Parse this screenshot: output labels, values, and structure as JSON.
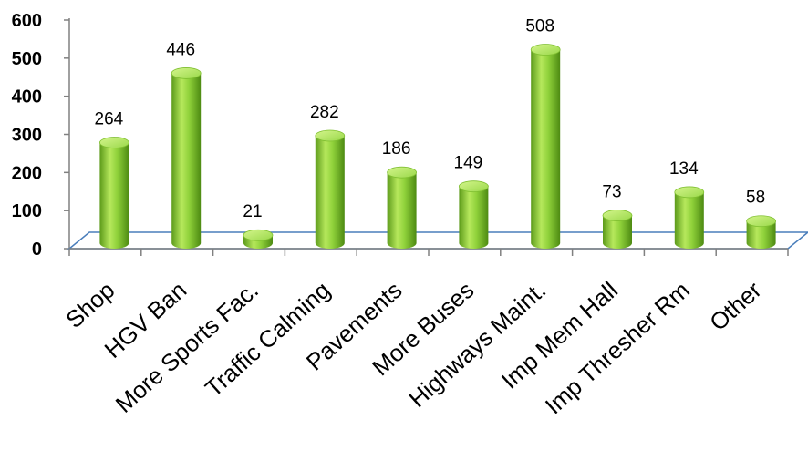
{
  "chart_data": {
    "type": "bar",
    "style": "3d-cylinder",
    "categories": [
      "Shop",
      "HGV Ban",
      "More Sports Fac.",
      "Traffic Calming",
      "Pavements",
      "More Buses",
      "Highways Maint.",
      "Imp Mem Hall",
      "Imp Thresher Rm",
      "Other"
    ],
    "values": [
      264,
      446,
      21,
      282,
      186,
      149,
      508,
      73,
      134,
      58
    ],
    "title": "",
    "xlabel": "",
    "ylabel": "",
    "ylim": [
      0,
      600
    ],
    "yticks": [
      0,
      100,
      200,
      300,
      400,
      500,
      600
    ],
    "grid": false,
    "legend": "none",
    "colors": {
      "bar": "#8fd13a",
      "bar_dark": "#4d8a12",
      "bar_light": "#c8f07a",
      "floor_edge": "#4a7ebb"
    }
  }
}
